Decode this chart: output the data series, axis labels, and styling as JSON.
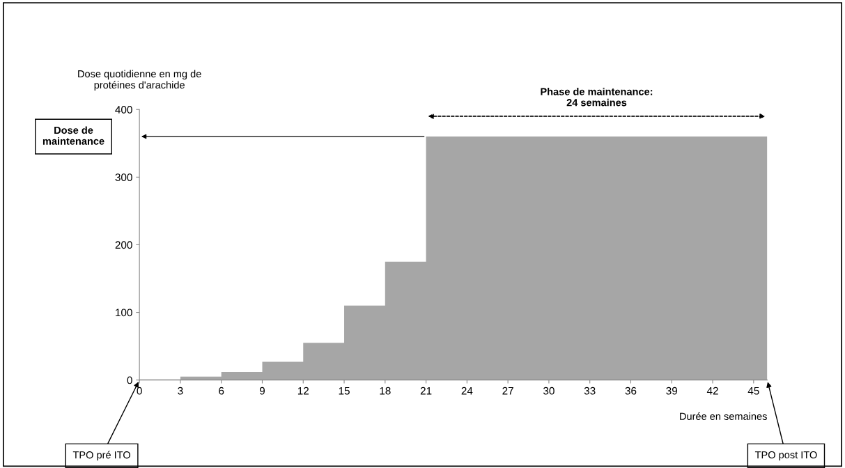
{
  "chart_data": {
    "type": "area",
    "ylabel": "Dose quotidienne en mg de\nprotéines d'arachide",
    "xlabel": "Durée en semaines",
    "x": [
      0,
      3,
      3,
      6,
      6,
      9,
      9,
      12,
      12,
      15,
      15,
      18,
      18,
      21,
      21,
      46
    ],
    "series": [
      {
        "color": "#a6a6a6",
        "values": [
          1,
          1,
          5,
          5,
          12,
          12,
          27,
          27,
          55,
          55,
          110,
          110,
          175,
          175,
          360,
          360
        ]
      }
    ],
    "xlim": [
      0,
      46
    ],
    "xticks": [
      0,
      3,
      6,
      9,
      12,
      15,
      18,
      21,
      24,
      27,
      30,
      33,
      36,
      39,
      42,
      45
    ],
    "ylim": [
      0,
      400
    ],
    "yticks": [
      0,
      100,
      200,
      300,
      400
    ],
    "grid": false,
    "legend": false,
    "annotations": [
      "Dose de\nmaintenance",
      "TPO pré ITO",
      "TPO post ITO",
      "Phase de maintenance:\n24 semaines"
    ]
  }
}
